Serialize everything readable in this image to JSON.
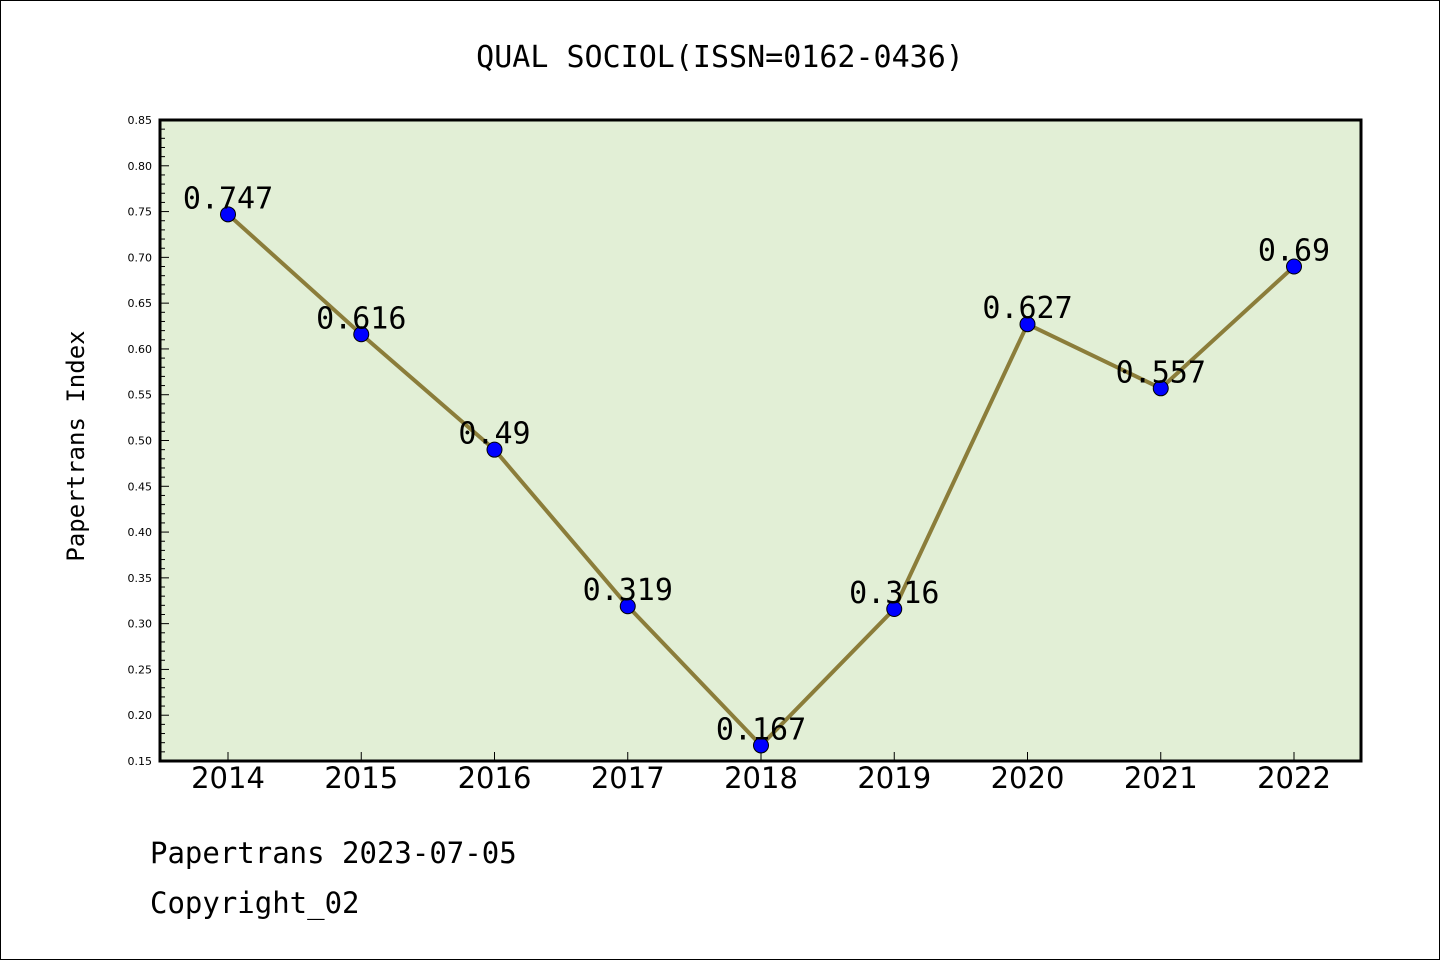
{
  "chart_data": {
    "type": "line",
    "title": "QUAL SOCIOL(ISSN=0162-0436)",
    "ylabel": "Papertrans Index",
    "xlabel": "",
    "categories": [
      "2014",
      "2015",
      "2016",
      "2017",
      "2018",
      "2019",
      "2020",
      "2021",
      "2022"
    ],
    "values": [
      0.747,
      0.616,
      0.49,
      0.319,
      0.167,
      0.316,
      0.627,
      0.557,
      0.69
    ],
    "data_labels": [
      "0.747",
      "0.616",
      "0.49",
      "0.319",
      "0.167",
      "0.316",
      "0.627",
      "0.557",
      "0.69"
    ],
    "ylim": [
      0.15,
      0.85
    ],
    "yticks": [
      "0.15",
      "0.20",
      "0.25",
      "0.30",
      "0.35",
      "0.40",
      "0.45",
      "0.50",
      "0.55",
      "0.60",
      "0.65",
      "0.70",
      "0.75",
      "0.80",
      "0.85"
    ],
    "grid": false,
    "colors": {
      "plot_background": "#e2efd6",
      "line": "#8b7d3a",
      "marker": "#0000ff"
    }
  },
  "footer": {
    "date_line": "Papertrans 2023-07-05",
    "copyright": "Copyright_02"
  }
}
